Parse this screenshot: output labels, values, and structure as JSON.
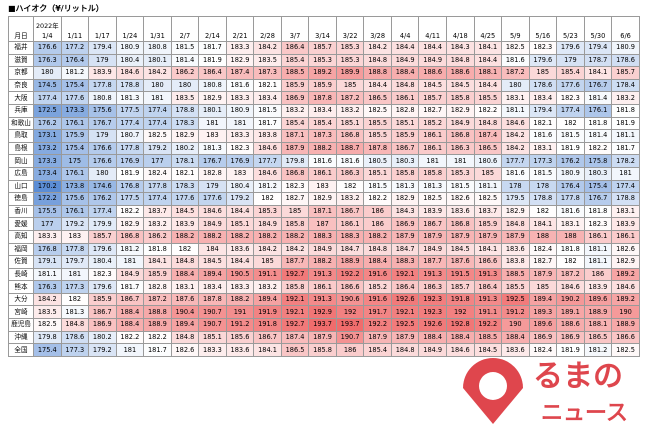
{
  "header": {
    "title": "■ハイオク（¥/リットル）",
    "corner": "月日",
    "year": "2022年"
  },
  "table": {
    "columns": [
      "1/4",
      "1/11",
      "1/17",
      "1/24",
      "1/31",
      "2/7",
      "2/14",
      "2/21",
      "2/28",
      "3/7",
      "3/14",
      "3/22",
      "3/28",
      "4/4",
      "4/11",
      "4/18",
      "4/25",
      "5/9",
      "5/16",
      "5/23",
      "5/30",
      "6/6"
    ],
    "rows": [
      {
        "name": "福井",
        "values": [
          176.6,
          177.2,
          179.4,
          180.9,
          180.8,
          181.5,
          181.7,
          183.3,
          184.2,
          186.4,
          185.7,
          185.3,
          184.2,
          184.4,
          184.4,
          184.3,
          184.1,
          182.5,
          182.3,
          179.6,
          179.4,
          180.9
        ]
      },
      {
        "name": "滋賀",
        "values": [
          176.3,
          176.4,
          179.0,
          180.4,
          180.1,
          181.4,
          181.9,
          182.9,
          183.5,
          185.4,
          185.3,
          185.3,
          184.8,
          184.9,
          184.9,
          184.8,
          184.4,
          181.6,
          179.6,
          179.0,
          178.7,
          178.6
        ]
      },
      {
        "name": "京都",
        "values": [
          180.0,
          181.2,
          183.9,
          184.6,
          184.2,
          186.2,
          186.4,
          187.4,
          187.3,
          188.5,
          189.2,
          189.9,
          188.8,
          188.4,
          188.6,
          188.6,
          188.1,
          187.2,
          185.0,
          185.4,
          184.1,
          185.7
        ]
      },
      {
        "name": "奈良",
        "values": [
          174.5,
          175.4,
          177.8,
          178.8,
          180.0,
          180.0,
          180.8,
          181.6,
          182.1,
          185.9,
          185.9,
          185.0,
          184.4,
          184.8,
          184.5,
          184.5,
          184.4,
          180.0,
          178.6,
          177.6,
          176.7,
          178.4
        ]
      },
      {
        "name": "大阪",
        "values": [
          177.4,
          177.6,
          180.8,
          181.3,
          181.0,
          183.5,
          182.9,
          183.3,
          183.4,
          186.9,
          187.8,
          187.2,
          186.5,
          186.1,
          185.7,
          185.8,
          185.5,
          183.1,
          183.4,
          182.3,
          181.4,
          183.2
        ]
      },
      {
        "name": "兵庫",
        "values": [
          172.5,
          173.3,
          175.6,
          177.5,
          177.4,
          178.8,
          180.1,
          180.9,
          181.5,
          183.2,
          183.4,
          183.2,
          182.5,
          182.8,
          182.7,
          182.9,
          182.2,
          181.1,
          179.4,
          177.4,
          176.1,
          181.8
        ]
      },
      {
        "name": "和歌山",
        "values": [
          176.2,
          176.1,
          176.7,
          177.4,
          177.4,
          178.3,
          181.0,
          181.0,
          181.7,
          185.4,
          185.4,
          185.1,
          185.5,
          185.1,
          185.2,
          184.9,
          184.8,
          184.6,
          182.1,
          182.0,
          181.8,
          181.9
        ]
      },
      {
        "name": "鳥取",
        "values": [
          173.1,
          175.9,
          179.0,
          180.7,
          182.5,
          182.9,
          183.0,
          183.3,
          183.8,
          187.1,
          187.3,
          186.8,
          185.5,
          185.9,
          186.1,
          186.8,
          187.4,
          184.2,
          181.6,
          181.5,
          181.4,
          181.1
        ]
      },
      {
        "name": "島根",
        "values": [
          173.2,
          175.4,
          176.6,
          177.8,
          179.2,
          180.2,
          181.3,
          182.3,
          184.6,
          187.9,
          188.2,
          188.7,
          187.8,
          186.7,
          186.1,
          186.3,
          186.5,
          184.2,
          183.1,
          181.9,
          182.2,
          181.7
        ]
      },
      {
        "name": "岡山",
        "values": [
          173.3,
          175.0,
          176.6,
          176.9,
          177.0,
          178.1,
          176.7,
          176.9,
          177.7,
          179.8,
          181.6,
          181.6,
          180.5,
          180.3,
          181.0,
          181.0,
          180.6,
          177.7,
          177.3,
          176.2,
          175.8,
          178.2
        ]
      },
      {
        "name": "広島",
        "values": [
          173.4,
          176.1,
          180.0,
          181.9,
          182.4,
          182.1,
          182.8,
          183.0,
          184.6,
          186.8,
          186.1,
          186.3,
          185.1,
          185.8,
          185.8,
          185.3,
          185.0,
          181.6,
          181.5,
          180.9,
          180.3,
          181.0
        ]
      },
      {
        "name": "山口",
        "values": [
          170.2,
          173.8,
          174.6,
          176.8,
          177.8,
          178.3,
          179.0,
          180.4,
          181.2,
          182.3,
          183.0,
          182.0,
          181.5,
          181.3,
          181.3,
          181.5,
          181.1,
          178.0,
          178.0,
          176.4,
          175.4,
          177.4
        ]
      },
      {
        "name": "徳島",
        "values": [
          172.2,
          175.6,
          176.2,
          177.5,
          177.4,
          177.6,
          177.6,
          179.2,
          182.0,
          182.7,
          182.9,
          183.2,
          182.2,
          182.9,
          182.5,
          182.6,
          182.5,
          179.5,
          178.8,
          177.8,
          176.7,
          178.8
        ]
      },
      {
        "name": "香川",
        "values": [
          175.5,
          176.1,
          177.4,
          182.2,
          183.7,
          184.5,
          184.6,
          184.4,
          185.3,
          185.0,
          187.1,
          186.7,
          186.0,
          184.3,
          183.9,
          183.6,
          183.7,
          182.9,
          182.0,
          181.6,
          181.8,
          183.1
        ]
      },
      {
        "name": "愛媛",
        "values": [
          177.0,
          179.2,
          179.9,
          182.9,
          183.2,
          183.9,
          184.9,
          185.1,
          184.9,
          185.8,
          187.0,
          186.1,
          186.0,
          186.9,
          186.7,
          186.8,
          185.9,
          184.8,
          184.1,
          183.1,
          182.3,
          183.9
        ]
      },
      {
        "name": "高知",
        "values": [
          183.3,
          183.0,
          185.7,
          186.8,
          186.2,
          188.2,
          188.2,
          188.2,
          188.2,
          188.2,
          188.3,
          188.3,
          188.2,
          187.9,
          187.9,
          187.9,
          187.9,
          187.9,
          188.0,
          188.0,
          186.1,
          186.1
        ]
      },
      {
        "name": "福岡",
        "values": [
          176.8,
          177.8,
          179.6,
          181.2,
          181.8,
          182.0,
          184.0,
          183.6,
          184.2,
          184.2,
          184.9,
          184.7,
          184.8,
          184.7,
          184.9,
          184.5,
          184.1,
          183.6,
          182.4,
          181.8,
          181.1,
          182.6
        ]
      },
      {
        "name": "佐賀",
        "values": [
          179.1,
          179.7,
          180.4,
          181.0,
          184.1,
          184.8,
          184.5,
          184.4,
          185.0,
          187.7,
          188.2,
          188.9,
          188.4,
          188.3,
          187.7,
          187.6,
          186.6,
          183.8,
          182.7,
          182.0,
          181.1,
          182.9
        ]
      },
      {
        "name": "長崎",
        "values": [
          181.1,
          181.0,
          182.3,
          184.9,
          185.9,
          188.4,
          189.4,
          190.5,
          191.1,
          192.7,
          191.3,
          192.2,
          191.6,
          192.1,
          191.3,
          191.5,
          191.3,
          188.5,
          187.9,
          187.2,
          186.0,
          189.2
        ]
      },
      {
        "name": "熊本",
        "values": [
          176.3,
          177.3,
          179.6,
          181.7,
          182.8,
          183.1,
          183.4,
          183.3,
          183.2,
          185.8,
          186.1,
          186.6,
          185.2,
          186.4,
          186.3,
          185.7,
          186.4,
          185.5,
          185.0,
          184.6,
          183.9,
          184.6
        ]
      },
      {
        "name": "大分",
        "values": [
          184.2,
          182.0,
          185.9,
          186.7,
          187.2,
          187.6,
          187.8,
          188.2,
          189.4,
          192.1,
          191.3,
          190.6,
          191.6,
          192.6,
          192.3,
          191.8,
          191.3,
          192.5,
          189.4,
          190.2,
          189.6,
          189.2
        ]
      },
      {
        "name": "宮崎",
        "values": [
          183.5,
          181.3,
          186.7,
          188.4,
          188.8,
          190.4,
          190.7,
          191.0,
          191.9,
          192.1,
          192.9,
          192.0,
          191.7,
          192.1,
          192.3,
          192.0,
          191.1,
          191.2,
          189.3,
          189.1,
          188.9,
          190.0
        ]
      },
      {
        "name": "鹿児島",
        "values": [
          182.5,
          184.8,
          186.9,
          188.4,
          188.9,
          189.4,
          190.7,
          191.2,
          191.8,
          192.7,
          193.7,
          193.7,
          192.2,
          192.5,
          192.6,
          192.8,
          192.2,
          190.0,
          189.6,
          188.6,
          188.1,
          188.9
        ]
      },
      {
        "name": "沖縄",
        "values": [
          179.8,
          178.6,
          180.2,
          182.2,
          182.2,
          184.8,
          185.1,
          185.6,
          186.7,
          187.4,
          187.9,
          190.7,
          187.9,
          187.9,
          188.4,
          188.4,
          188.5,
          188.4,
          186.9,
          186.9,
          186.5,
          186.6
        ]
      },
      {
        "name": "全国",
        "values": [
          175.4,
          177.3,
          179.2,
          181.0,
          181.7,
          182.6,
          183.3,
          183.6,
          184.1,
          186.5,
          185.8,
          186.0,
          185.4,
          184.8,
          184.9,
          184.6,
          184.5,
          183.6,
          182.4,
          181.9,
          181.2,
          182.5
        ]
      }
    ]
  },
  "logo": {
    "top": "るまの",
    "bottom": "ニュース"
  }
}
